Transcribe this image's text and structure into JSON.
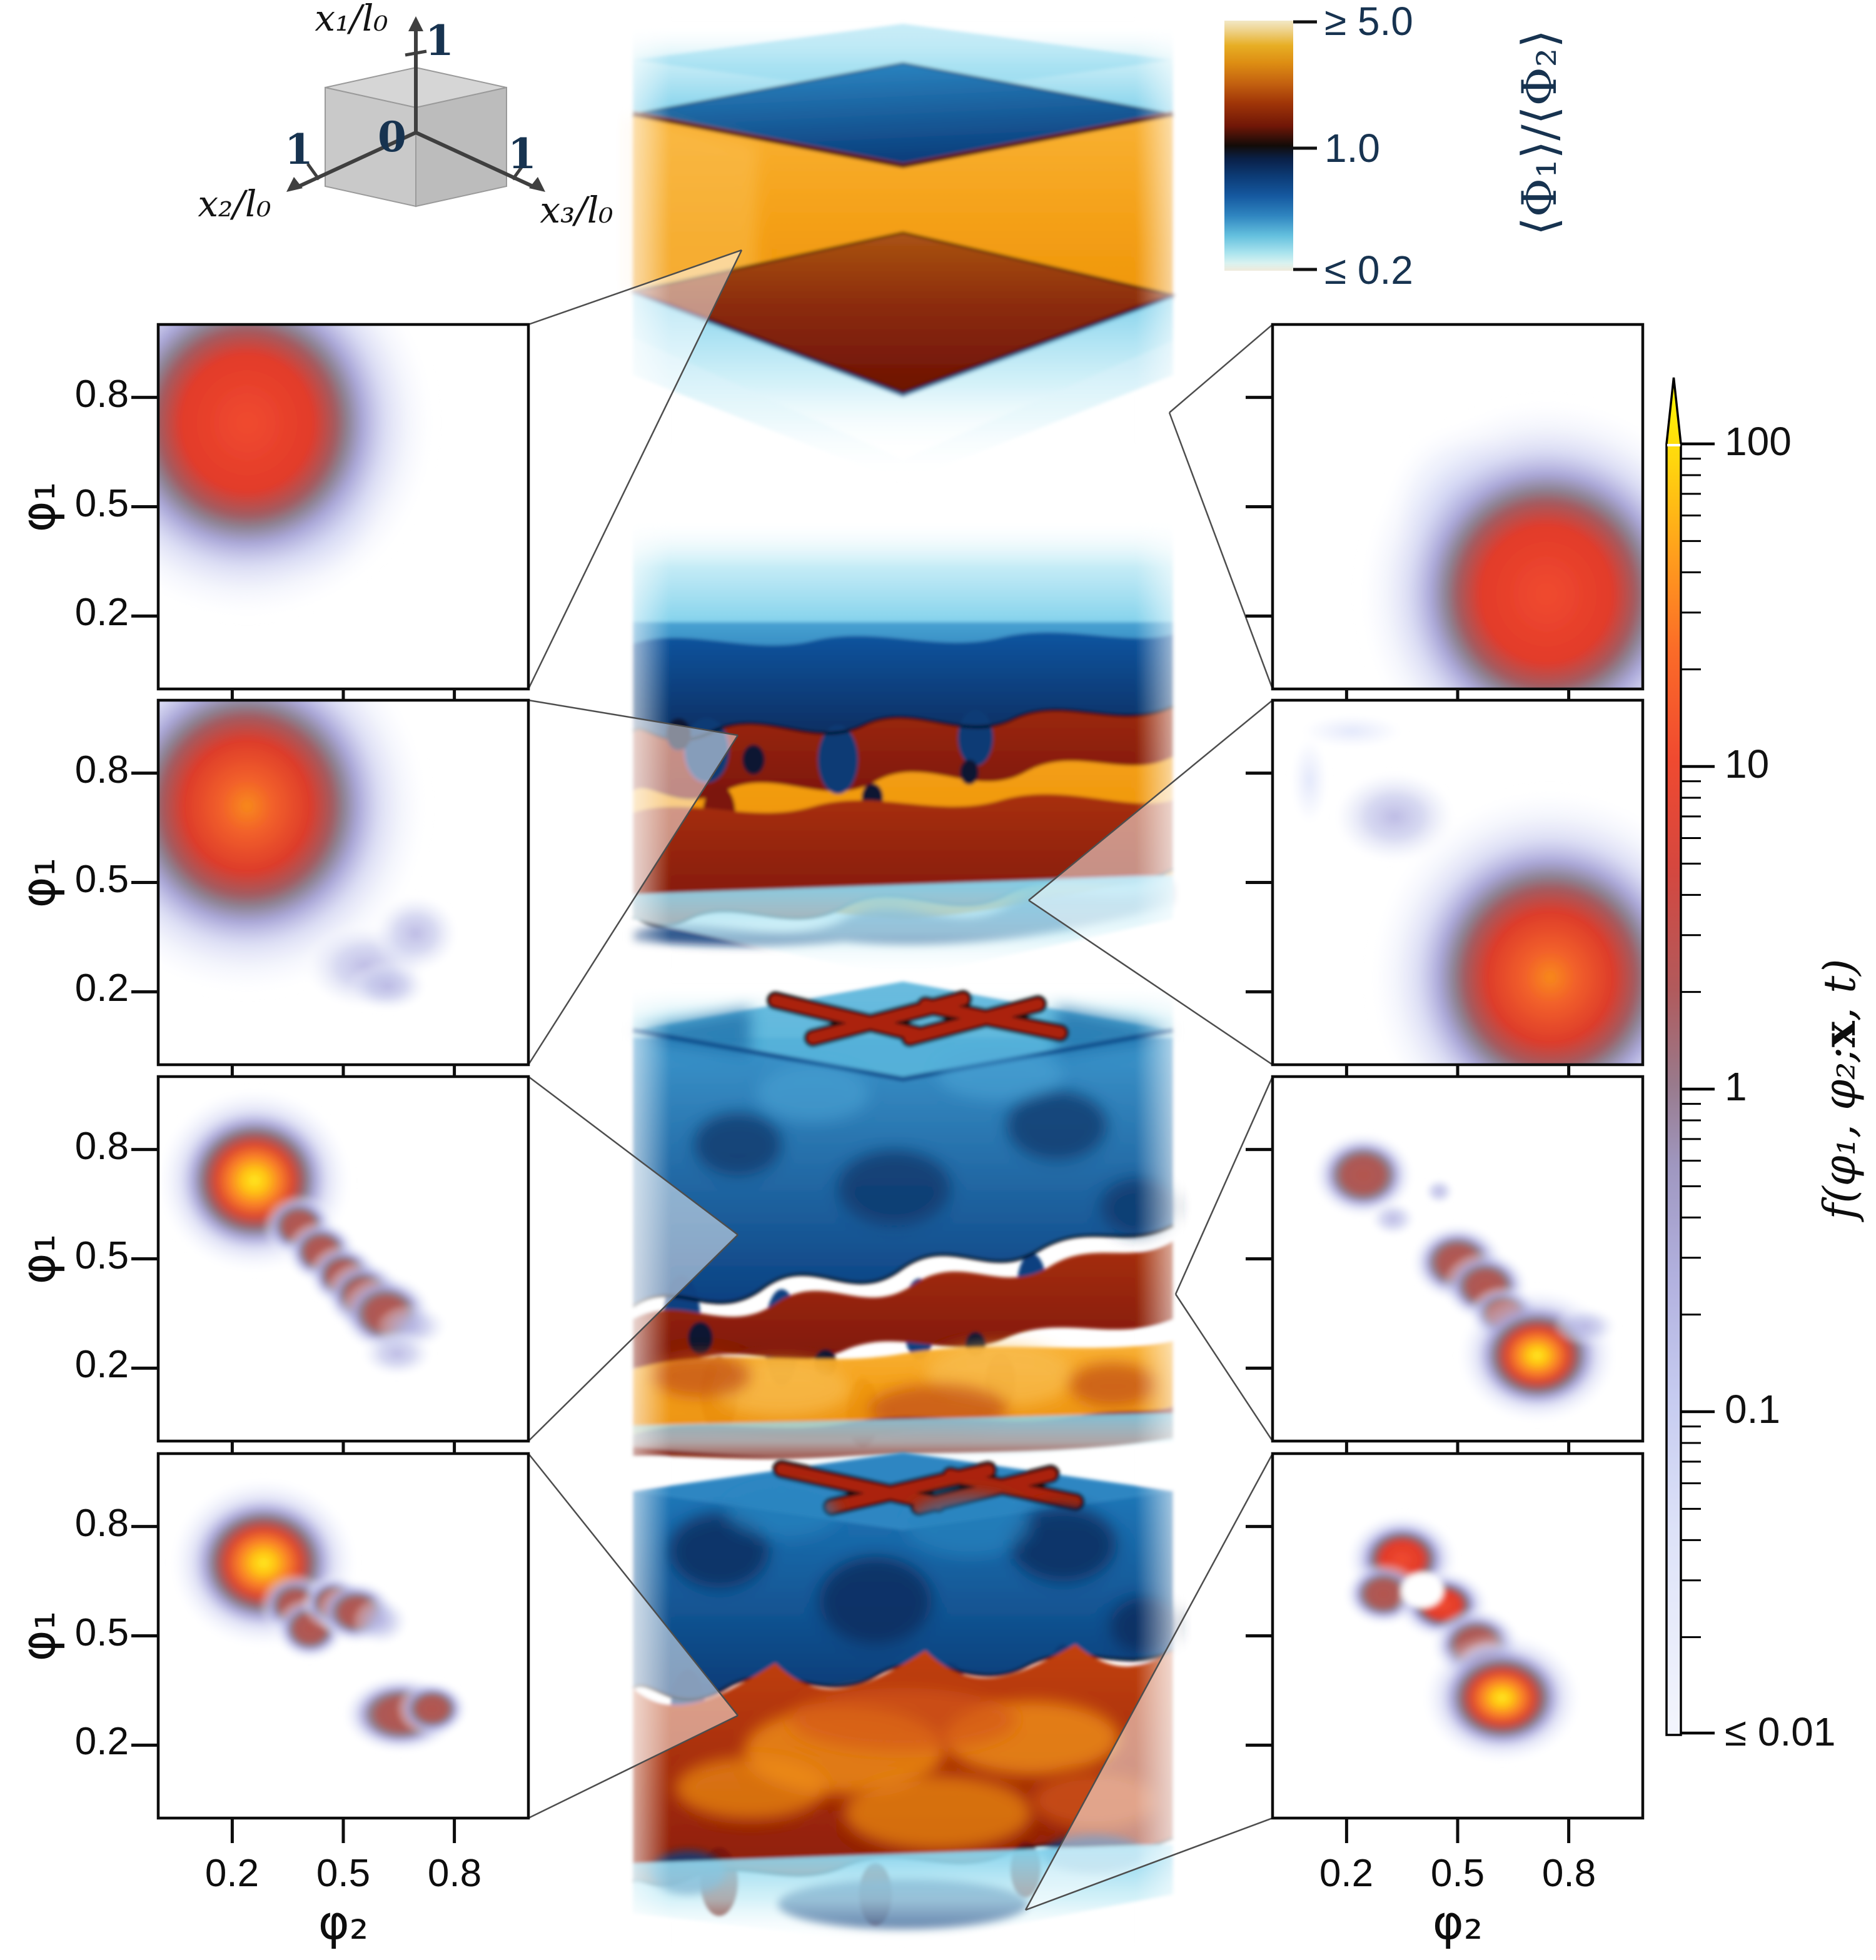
{
  "schematic": {
    "axis_x1": "x₁/l₀",
    "axis_x2": "x₂/l₀",
    "axis_x3": "x₃/l₀",
    "origin_label": "0",
    "tick_x1": "1",
    "tick_x2": "1",
    "tick_x3": "1",
    "cube_color": "#c9c9c9",
    "label_color": "#173350"
  },
  "ratio_colorbar": {
    "label": "⟨Φ₁⟩/⟨Φ₂⟩",
    "tick_top": "≥ 5.0",
    "tick_mid": "1.0",
    "tick_bottom": "≤ 0.2",
    "text_color": "#173350",
    "colors_top_to_bottom": [
      "#f2e8c6",
      "#e7ae24",
      "#c46210",
      "#711707",
      "#120b08",
      "#0c3a74",
      "#2f85c0",
      "#7ccfe8",
      "#d9f2f0",
      "#efeadb"
    ]
  },
  "f_colorbar": {
    "label_prefix": "f(φ₁, φ₂; ",
    "label_x": "x",
    "label_suffix": ", t)",
    "tick_100": "100",
    "tick_10": "10",
    "tick_1": "1",
    "tick_01": "0.1",
    "tick_001": "≤ 0.01",
    "colors_top_to_bottom": [
      "#fffb02",
      "#ff9e1d",
      "#f04a30",
      "#b15a5c",
      "#997a8c",
      "#b1b0de",
      "#c6cbf0",
      "#f3f5fd"
    ]
  },
  "axes": {
    "xlabel": "φ₂",
    "ylabel": "φ₁",
    "xtick_02": "0.2",
    "xtick_05": "0.5",
    "xtick_08": "0.8",
    "ytick_08": "0.8",
    "ytick_05": "0.5",
    "ytick_02": "0.2"
  },
  "chart_data": {
    "type": "heatmap",
    "description": "Four time snapshots (top to bottom): central 3D volume renderings of the scalar ratio ⟨Φ1⟩/⟨Φ2⟩ in a unit cube (x1,x2,x3)/l0, flanked left and right by joint PDFs f(φ1,φ2;x,t) at two probe locations, connected by slice wedges.",
    "volume_colorbar": {
      "scale": "diverging",
      "ticks": [
        ">=5.0 (orange)",
        "1.0 (black)",
        "<=0.2 (cyan)"
      ]
    },
    "f_colorbar": {
      "scale": "log",
      "ticks": [
        100,
        10,
        1,
        0.1,
        0.01
      ]
    },
    "pdf_axes": {
      "x": "φ2",
      "y": "φ1",
      "range": [
        0,
        1
      ],
      "ticks": [
        0.2,
        0.5,
        0.8
      ]
    },
    "blob_format": "[phi2, phi1, rx, ry, kind] with kind in red|redorange|yellow|warm|faint|vfaint|white",
    "left_pdfs": [
      {
        "blobs": [
          [
            0.42,
            0.5,
            0.2,
            0.22,
            "vfaint"
          ],
          [
            0.24,
            0.73,
            0.52,
            0.55,
            "red"
          ]
        ]
      },
      {
        "blobs": [
          [
            0.24,
            0.71,
            0.5,
            0.53,
            "redorange"
          ],
          [
            0.56,
            0.27,
            0.17,
            0.12,
            "faint"
          ],
          [
            0.695,
            0.36,
            0.12,
            0.11,
            "faint"
          ],
          [
            0.62,
            0.215,
            0.11,
            0.07,
            "faint"
          ]
        ]
      },
      {
        "blobs": [
          [
            0.26,
            0.715,
            0.27,
            0.26,
            "yellow"
          ],
          [
            0.38,
            0.59,
            0.1,
            0.09,
            "warm"
          ],
          [
            0.44,
            0.52,
            0.1,
            0.09,
            "warm"
          ],
          [
            0.5,
            0.455,
            0.1,
            0.09,
            "warm"
          ],
          [
            0.555,
            0.4,
            0.11,
            0.1,
            "warm"
          ],
          [
            0.615,
            0.35,
            0.13,
            0.11,
            "warm"
          ],
          [
            0.685,
            0.315,
            0.1,
            0.065,
            "faint"
          ],
          [
            0.645,
            0.24,
            0.1,
            0.065,
            "faint"
          ]
        ]
      },
      {
        "blobs": [
          [
            0.285,
            0.7,
            0.26,
            0.24,
            "yellow"
          ],
          [
            0.37,
            0.585,
            0.1,
            0.09,
            "warm"
          ],
          [
            0.41,
            0.52,
            0.1,
            0.09,
            "warm"
          ],
          [
            0.475,
            0.59,
            0.09,
            0.08,
            "warm"
          ],
          [
            0.535,
            0.565,
            0.11,
            0.09,
            "warm"
          ],
          [
            0.6,
            0.54,
            0.08,
            0.07,
            "faint"
          ],
          [
            0.655,
            0.285,
            0.16,
            0.11,
            "warm"
          ],
          [
            0.74,
            0.3,
            0.1,
            0.08,
            "warm"
          ]
        ]
      }
    ],
    "right_pdfs": [
      {
        "blobs": [
          [
            0.5,
            0.52,
            0.2,
            0.22,
            "vfaint"
          ],
          [
            0.74,
            0.26,
            0.52,
            0.55,
            "red"
          ]
        ]
      },
      {
        "blobs": [
          [
            0.75,
            0.24,
            0.5,
            0.53,
            "redorange"
          ],
          [
            0.33,
            0.68,
            0.17,
            0.13,
            "faint"
          ],
          [
            0.1,
            0.78,
            0.055,
            0.13,
            "vfaint"
          ],
          [
            0.215,
            0.915,
            0.15,
            0.05,
            "vfaint"
          ]
        ]
      },
      {
        "blobs": [
          [
            0.245,
            0.73,
            0.14,
            0.12,
            "warm"
          ],
          [
            0.325,
            0.61,
            0.065,
            0.05,
            "faint"
          ],
          [
            0.45,
            0.685,
            0.042,
            0.038,
            "faint"
          ],
          [
            0.5,
            0.49,
            0.13,
            0.11,
            "warm"
          ],
          [
            0.575,
            0.425,
            0.12,
            0.1,
            "warm"
          ],
          [
            0.625,
            0.35,
            0.1,
            0.08,
            "warm"
          ],
          [
            0.715,
            0.235,
            0.22,
            0.19,
            "yellow"
          ],
          [
            0.845,
            0.315,
            0.09,
            0.055,
            "faint"
          ]
        ]
      },
      {
        "blobs": [
          [
            0.35,
            0.71,
            0.155,
            0.13,
            "red"
          ],
          [
            0.3,
            0.615,
            0.11,
            0.09,
            "warm"
          ],
          [
            0.46,
            0.585,
            0.13,
            0.1,
            "red"
          ],
          [
            0.55,
            0.475,
            0.125,
            0.105,
            "warm"
          ],
          [
            0.585,
            0.4,
            0.1,
            0.09,
            "warm"
          ],
          [
            0.62,
            0.33,
            0.22,
            0.185,
            "yellow"
          ],
          [
            0.405,
            0.625,
            0.068,
            0.058,
            "white"
          ]
        ]
      }
    ],
    "volumes": [
      {
        "t_index": 1,
        "state": "flat stratified: cyan top, dark-blue interface, orange slab, maroon interface, cyan bottom"
      },
      {
        "t_index": 2,
        "state": "wavy interfaces with plumes"
      },
      {
        "t_index": 3,
        "state": "turbulent: blue upper half, orange-red lower half, red streaks on top face"
      },
      {
        "t_index": 4,
        "state": "fully turbulent mixing, red streaks on top face"
      }
    ]
  }
}
